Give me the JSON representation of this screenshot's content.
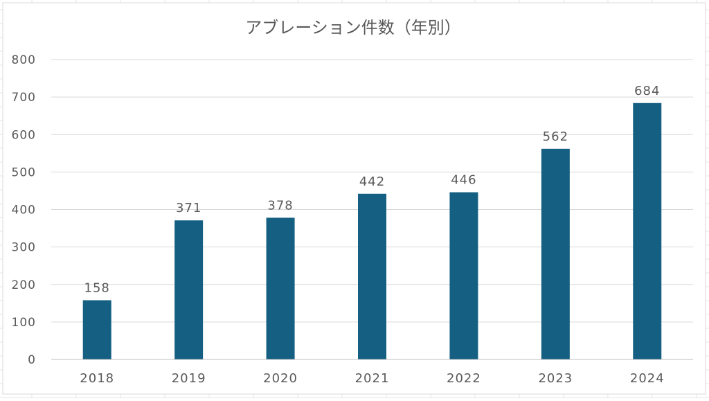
{
  "chart_data": {
    "type": "bar",
    "title": "アブレーション件数（年別）",
    "xlabel": "",
    "ylabel": "",
    "categories": [
      "2018",
      "2019",
      "2020",
      "2021",
      "2022",
      "2023",
      "2024"
    ],
    "values": [
      158,
      371,
      378,
      442,
      446,
      562,
      684
    ],
    "data_labels": [
      "158",
      "371",
      "378",
      "442",
      "446",
      "562",
      "684"
    ],
    "ylim": [
      0,
      800
    ],
    "y_ticks": [
      "0",
      "100",
      "200",
      "300",
      "400",
      "500",
      "600",
      "700",
      "800"
    ],
    "grid": true,
    "legend": "none",
    "colors": {
      "bar": "#155f82",
      "grid": "#d9d9d9",
      "text": "#595959",
      "axis": "#bfbfbf",
      "sheet_grid": "#e6e6e6"
    }
  }
}
